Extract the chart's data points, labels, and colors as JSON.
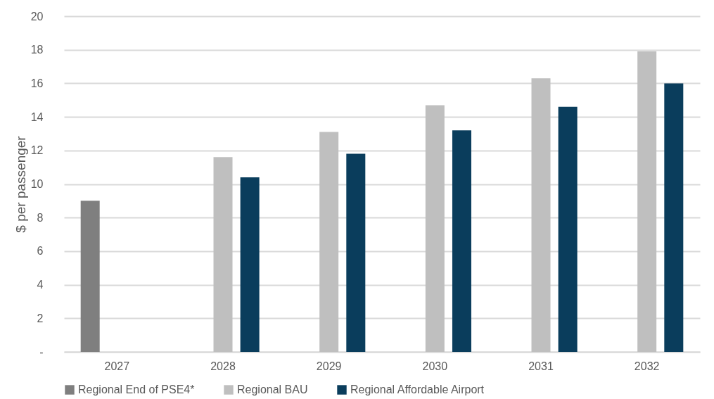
{
  "chart_data": {
    "type": "bar",
    "ylabel": "$ per passenger",
    "categories": [
      "2027",
      "2028",
      "2029",
      "2030",
      "2031",
      "2032"
    ],
    "series": [
      {
        "name": "Regional End of PSE4*",
        "color": "#7f7f7f",
        "values": [
          9.0,
          null,
          null,
          null,
          null,
          null
        ]
      },
      {
        "name": "Regional BAU",
        "color": "#bfbfbf",
        "values": [
          null,
          11.6,
          13.1,
          14.7,
          16.3,
          17.9
        ]
      },
      {
        "name": "Regional Affordable Airport",
        "color": "#0a3d5c",
        "values": [
          null,
          10.4,
          11.8,
          13.2,
          14.6,
          16.0
        ]
      }
    ],
    "ylim": [
      0,
      20
    ],
    "yticks": [
      {
        "value": 0,
        "label": "-"
      },
      2,
      4,
      6,
      8,
      10,
      12,
      14,
      16,
      18,
      20
    ],
    "grid": "y",
    "legend": "bottom"
  }
}
